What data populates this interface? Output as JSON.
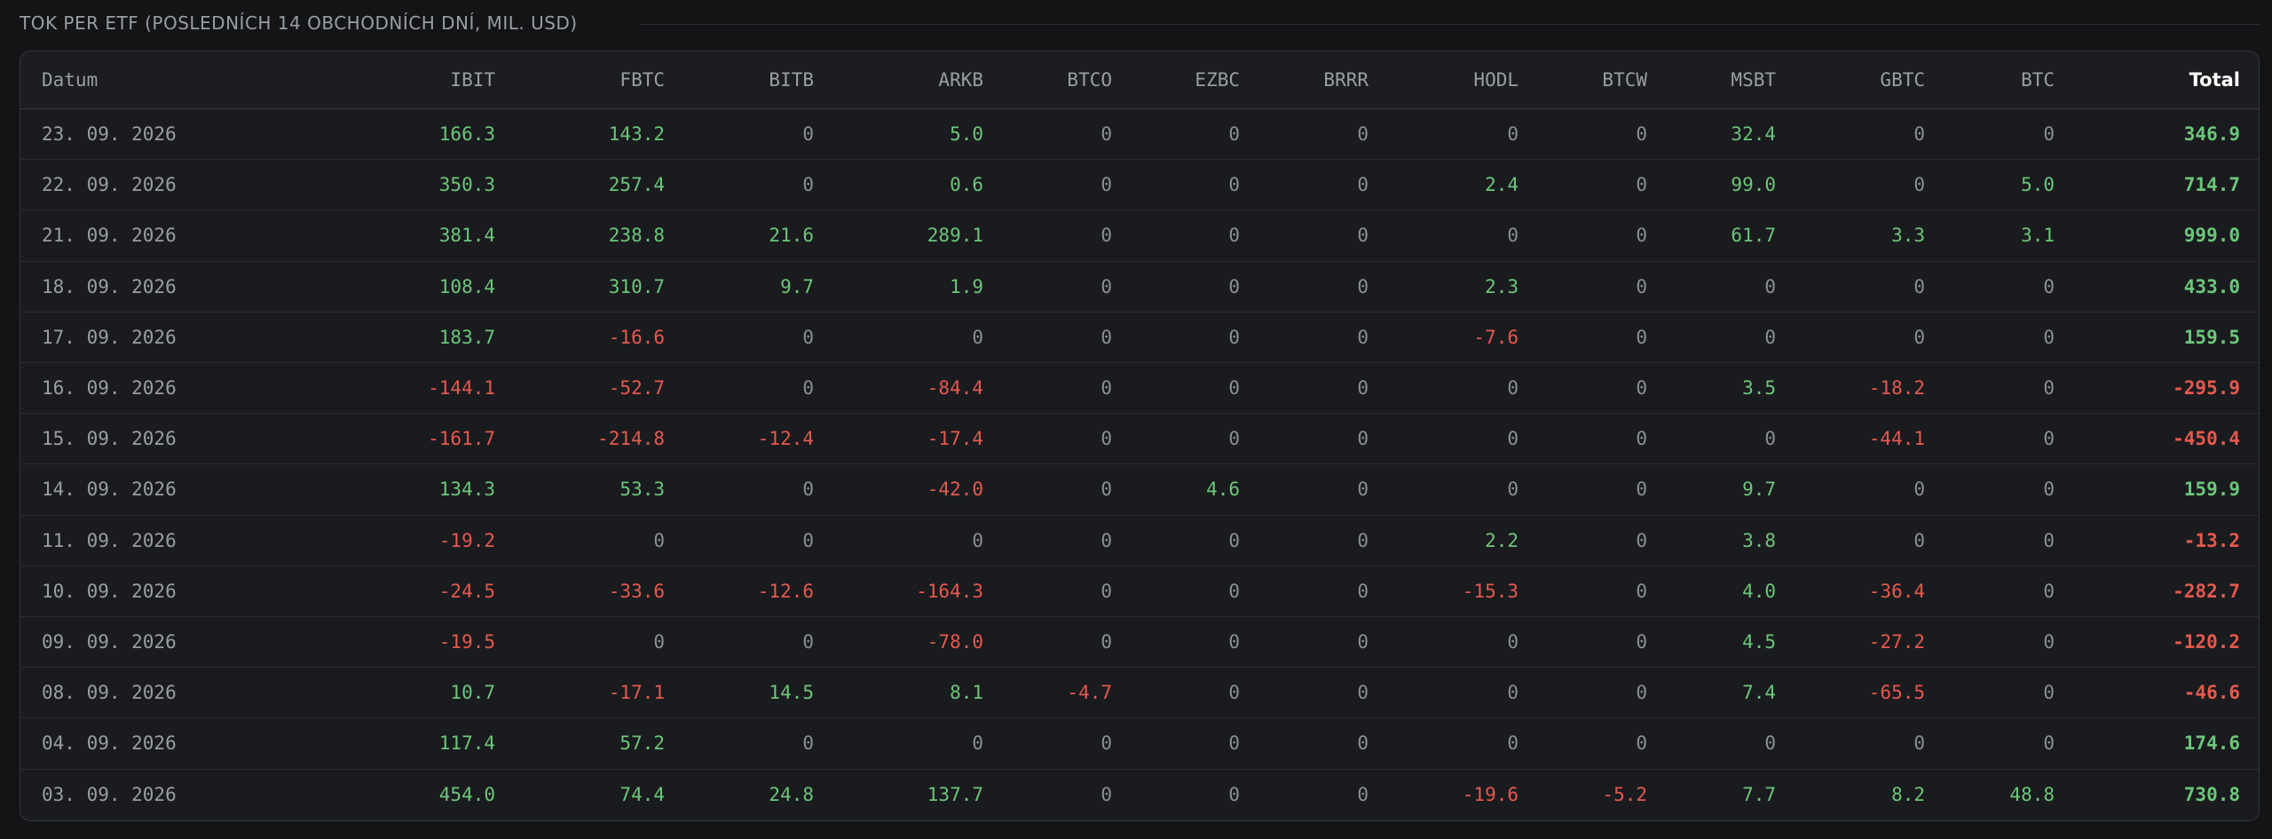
{
  "title": "TOK PER ETF (POSLEDNÍCH 14 OBCHODNÍCH DNÍ, MIL. USD)",
  "table": {
    "columns": [
      "Datum",
      "IBIT",
      "FBTC",
      "BITB",
      "ARKB",
      "BTCO",
      "EZBC",
      "BRRR",
      "HODL",
      "BTCW",
      "MSBT",
      "GBTC",
      "BTC",
      "Total"
    ],
    "rows": [
      [
        "23. 09. 2026",
        "166.3",
        "143.2",
        "0",
        "5.0",
        "0",
        "0",
        "0",
        "0",
        "0",
        "32.4",
        "0",
        "0",
        "346.9"
      ],
      [
        "22. 09. 2026",
        "350.3",
        "257.4",
        "0",
        "0.6",
        "0",
        "0",
        "0",
        "2.4",
        "0",
        "99.0",
        "0",
        "5.0",
        "714.7"
      ],
      [
        "21. 09. 2026",
        "381.4",
        "238.8",
        "21.6",
        "289.1",
        "0",
        "0",
        "0",
        "0",
        "0",
        "61.7",
        "3.3",
        "3.1",
        "999.0"
      ],
      [
        "18. 09. 2026",
        "108.4",
        "310.7",
        "9.7",
        "1.9",
        "0",
        "0",
        "0",
        "2.3",
        "0",
        "0",
        "0",
        "0",
        "433.0"
      ],
      [
        "17. 09. 2026",
        "183.7",
        "-16.6",
        "0",
        "0",
        "0",
        "0",
        "0",
        "-7.6",
        "0",
        "0",
        "0",
        "0",
        "159.5"
      ],
      [
        "16. 09. 2026",
        "-144.1",
        "-52.7",
        "0",
        "-84.4",
        "0",
        "0",
        "0",
        "0",
        "0",
        "3.5",
        "-18.2",
        "0",
        "-295.9"
      ],
      [
        "15. 09. 2026",
        "-161.7",
        "-214.8",
        "-12.4",
        "-17.4",
        "0",
        "0",
        "0",
        "0",
        "0",
        "0",
        "-44.1",
        "0",
        "-450.4"
      ],
      [
        "14. 09. 2026",
        "134.3",
        "53.3",
        "0",
        "-42.0",
        "0",
        "4.6",
        "0",
        "0",
        "0",
        "9.7",
        "0",
        "0",
        "159.9"
      ],
      [
        "11. 09. 2026",
        "-19.2",
        "0",
        "0",
        "0",
        "0",
        "0",
        "0",
        "2.2",
        "0",
        "3.8",
        "0",
        "0",
        "-13.2"
      ],
      [
        "10. 09. 2026",
        "-24.5",
        "-33.6",
        "-12.6",
        "-164.3",
        "0",
        "0",
        "0",
        "-15.3",
        "0",
        "4.0",
        "-36.4",
        "0",
        "-282.7"
      ],
      [
        "09. 09. 2026",
        "-19.5",
        "0",
        "0",
        "-78.0",
        "0",
        "0",
        "0",
        "0",
        "0",
        "4.5",
        "-27.2",
        "0",
        "-120.2"
      ],
      [
        "08. 09. 2026",
        "10.7",
        "-17.1",
        "14.5",
        "8.1",
        "-4.7",
        "0",
        "0",
        "0",
        "0",
        "7.4",
        "-65.5",
        "0",
        "-46.6"
      ],
      [
        "04. 09. 2026",
        "117.4",
        "57.2",
        "0",
        "0",
        "0",
        "0",
        "0",
        "0",
        "0",
        "0",
        "0",
        "0",
        "174.6"
      ],
      [
        "03. 09. 2026",
        "454.0",
        "74.4",
        "24.8",
        "137.7",
        "0",
        "0",
        "0",
        "-19.6",
        "-5.2",
        "7.7",
        "8.2",
        "48.8",
        "730.8"
      ]
    ]
  }
}
